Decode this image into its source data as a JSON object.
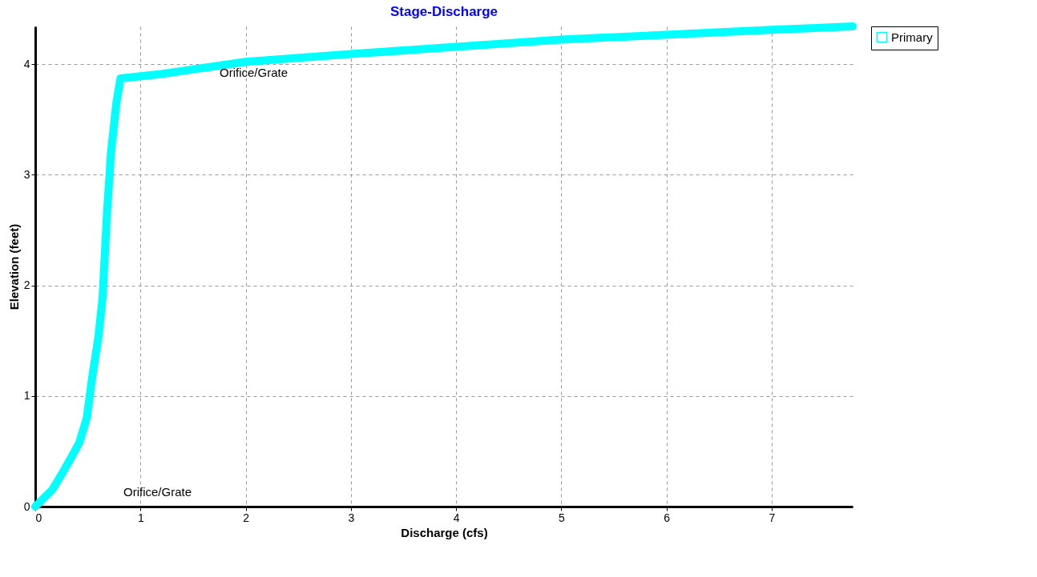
{
  "chart_data": {
    "type": "line",
    "title": "Stage-Discharge",
    "xlabel": "Discharge  (cfs)",
    "ylabel": "Elevation  (feet)",
    "x": [
      0,
      0.16,
      0.25,
      0.34,
      0.42,
      0.49,
      0.54,
      0.6,
      0.64,
      0.68,
      0.72,
      0.77,
      0.81,
      1.2,
      2,
      3,
      5,
      7,
      7.77
    ],
    "series": [
      {
        "name": "Primary",
        "color": "#00ffff",
        "values": [
          0,
          0.15,
          0.29,
          0.44,
          0.58,
          0.8,
          1.16,
          1.53,
          1.89,
          2.62,
          3.2,
          3.64,
          3.87,
          3.91,
          4.02,
          4.09,
          4.22,
          4.31,
          4.34
        ]
      }
    ],
    "xlim": [
      0,
      7.77
    ],
    "ylim": [
      0,
      4.34
    ],
    "xticks": [
      0,
      1,
      2,
      3,
      4,
      5,
      6,
      7
    ],
    "yticks": [
      0,
      1,
      2,
      3,
      4
    ],
    "grid": true,
    "legend": "top right",
    "marker": "none",
    "line_style": "solid",
    "annotations": [
      "Orifice/Grate",
      "Orifice/Grate"
    ]
  }
}
